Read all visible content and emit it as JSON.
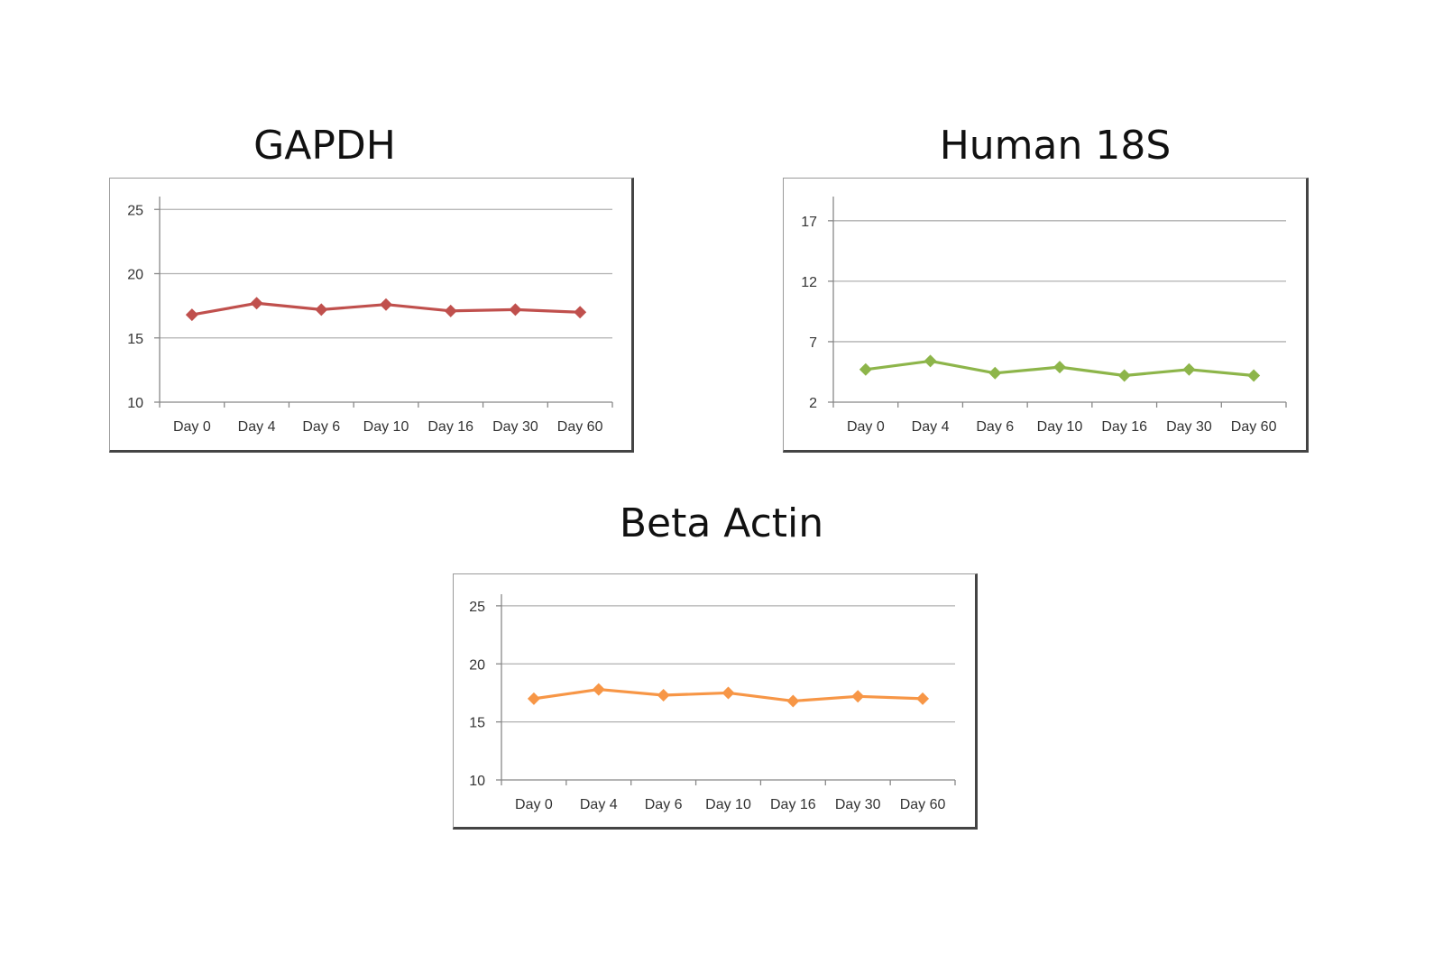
{
  "chart_data": [
    {
      "type": "line",
      "title": "GAPDH",
      "categories": [
        "Day 0",
        "Day 4",
        "Day 6",
        "Day 10",
        "Day 16",
        "Day 30",
        "Day 60"
      ],
      "series": [
        {
          "values": [
            16.8,
            17.7,
            17.2,
            17.6,
            17.1,
            17.2,
            17.0
          ],
          "color": "#c0504d"
        }
      ],
      "yticks": [
        10,
        15,
        20,
        25
      ],
      "ylim": [
        10,
        26
      ],
      "grid": true,
      "legend": "none",
      "marker": "diamond"
    },
    {
      "type": "line",
      "title": "Human 18S",
      "categories": [
        "Day 0",
        "Day 4",
        "Day 6",
        "Day 10",
        "Day 16",
        "Day 30",
        "Day 60"
      ],
      "series": [
        {
          "values": [
            4.7,
            5.4,
            4.4,
            4.9,
            4.2,
            4.7,
            4.2
          ],
          "color": "#8db54a"
        }
      ],
      "yticks": [
        2,
        7,
        12,
        17
      ],
      "ylim": [
        2,
        19
      ],
      "grid": true,
      "legend": "none",
      "marker": "diamond"
    },
    {
      "type": "line",
      "title": "Beta Actin",
      "categories": [
        "Day 0",
        "Day 4",
        "Day 6",
        "Day 10",
        "Day 16",
        "Day 30",
        "Day 60"
      ],
      "series": [
        {
          "values": [
            17.0,
            17.8,
            17.3,
            17.5,
            16.8,
            17.2,
            17.0
          ],
          "color": "#f79646"
        }
      ],
      "yticks": [
        10,
        15,
        20,
        25
      ],
      "ylim": [
        10,
        26
      ],
      "grid": true,
      "legend": "none",
      "marker": "diamond"
    }
  ]
}
